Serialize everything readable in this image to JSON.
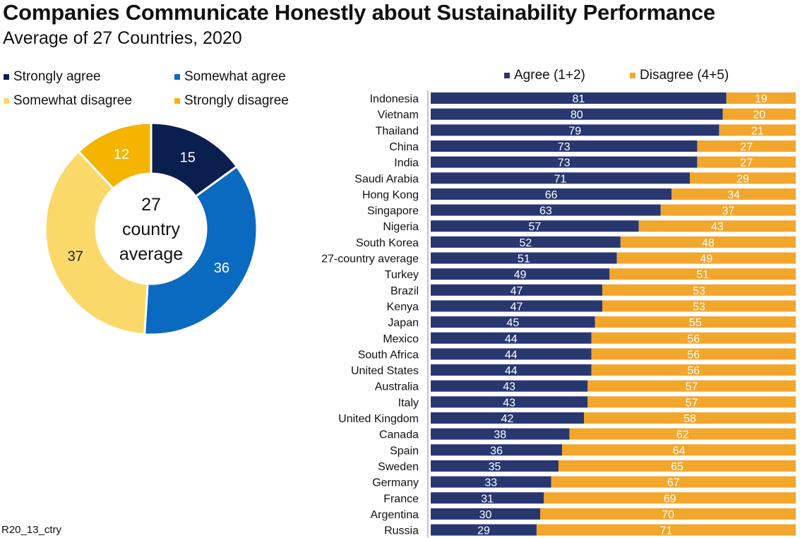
{
  "title": "Companies Communicate Honestly about Sustainability Performance",
  "subtitle": "Average of 27 Countries, 2020",
  "footnote": "R20_13_ctry",
  "chart_data": [
    {
      "type": "pie",
      "subtype": "donut",
      "center_label": [
        "27",
        "country",
        "average"
      ],
      "legend_position": "top",
      "slices": [
        {
          "label": "Strongly agree",
          "value": 15,
          "color": "#0b1f4f"
        },
        {
          "label": "Somewhat agree",
          "value": 36,
          "color": "#0a6abf"
        },
        {
          "label": "Somewhat disagree",
          "value": 37,
          "color": "#fbd86a"
        },
        {
          "label": "Strongly disagree",
          "value": 12,
          "color": "#f4b400"
        }
      ]
    },
    {
      "type": "bar",
      "orientation": "horizontal",
      "stacked": true,
      "legend_position": "top",
      "xlim": [
        0,
        100
      ],
      "categories": [
        "Indonesia",
        "Vietnam",
        "Thailand",
        "China",
        "India",
        "Saudi Arabia",
        "Hong Kong",
        "Singapore",
        "Nigeria",
        "South Korea",
        "27-country average",
        "Turkey",
        "Brazil",
        "Kenya",
        "Japan",
        "Mexico",
        "South Africa",
        "United States",
        "Australia",
        "Italy",
        "United Kingdom",
        "Canada",
        "Spain",
        "Sweden",
        "Germany",
        "France",
        "Argentina",
        "Russia"
      ],
      "series": [
        {
          "name": "Agree (1+2)",
          "color": "#283770",
          "values": [
            81,
            80,
            79,
            73,
            73,
            71,
            66,
            63,
            57,
            52,
            51,
            49,
            47,
            47,
            45,
            44,
            44,
            44,
            43,
            43,
            42,
            38,
            36,
            35,
            33,
            31,
            30,
            29
          ]
        },
        {
          "name": "Disagree (4+5)",
          "color": "#f2a62b",
          "values": [
            19,
            20,
            21,
            27,
            27,
            29,
            34,
            37,
            43,
            48,
            49,
            51,
            53,
            53,
            55,
            56,
            56,
            56,
            57,
            57,
            58,
            62,
            64,
            65,
            67,
            69,
            70,
            71
          ]
        }
      ]
    }
  ]
}
